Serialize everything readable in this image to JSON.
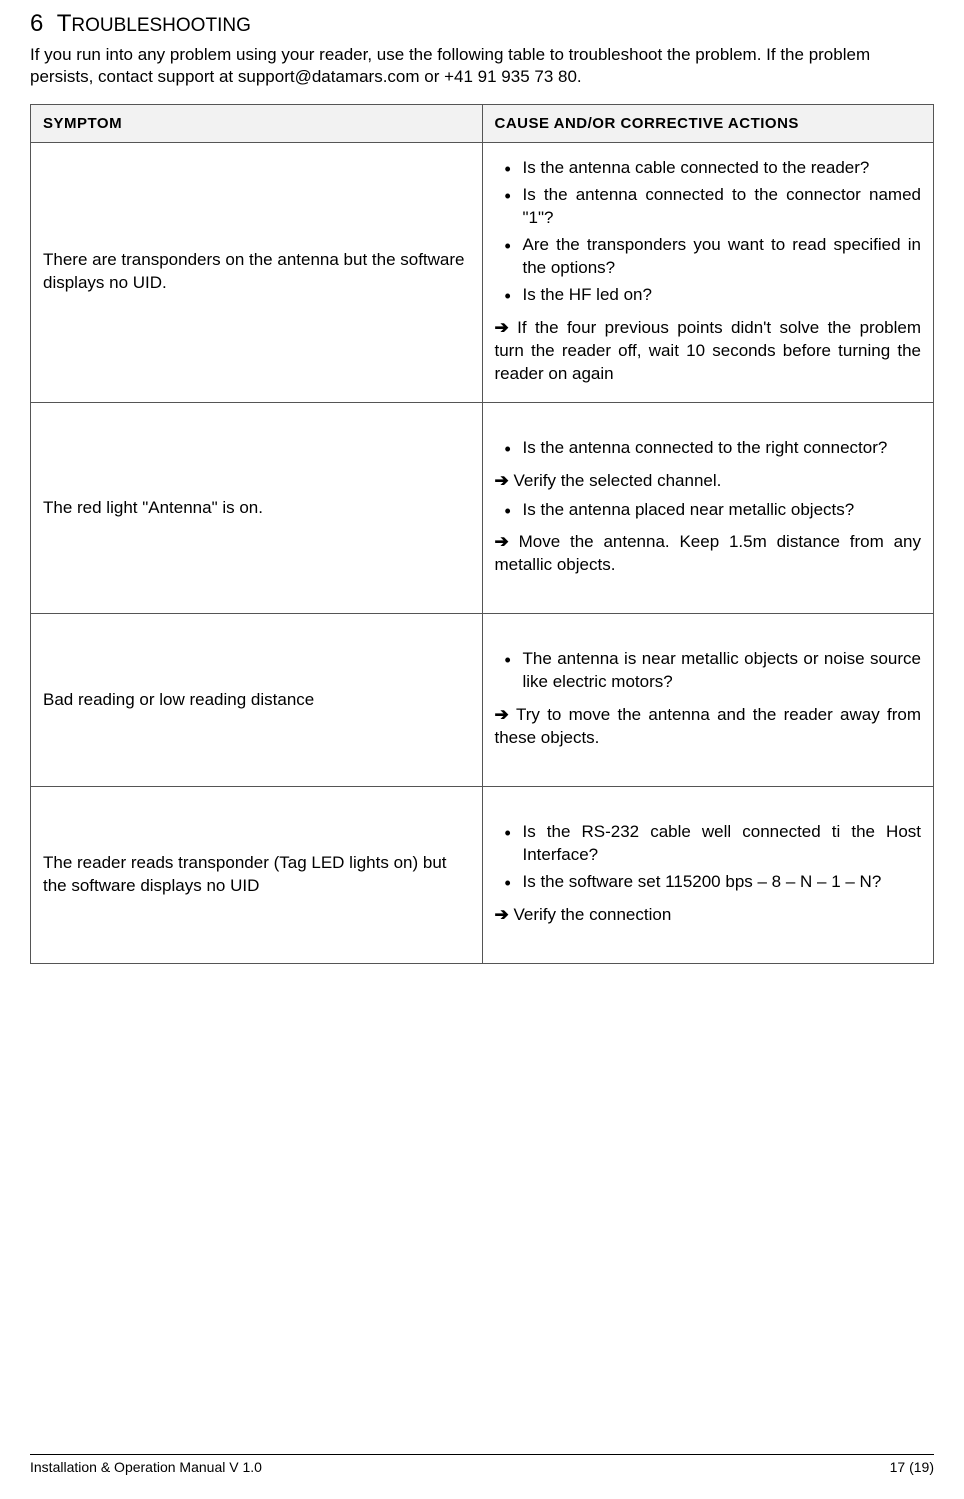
{
  "section": {
    "number": "6",
    "title_first_letter": "T",
    "title_rest": "ROUBLESHOOTING"
  },
  "intro": "If you run into any problem using your reader, use the following table to troubleshoot the problem. If the problem persists, contact support at support@datamars.com or +41 91 935 73 80.",
  "table": {
    "header_symptom": "SYMPTOM",
    "header_action": "CAUSE AND/OR CORRECTIVE ACTIONS",
    "rows": [
      {
        "symptom": "There are transponders on the antenna but the software displays no UID.",
        "bullets": [
          "Is the antenna cable connected to the reader?",
          "Is the antenna connected to the connector named \"1\"?",
          "Are the transponders you want to read specified in the options?",
          "Is the HF led on?"
        ],
        "arrows": [
          "If the four previous points didn't solve the problem turn the reader off, wait 10 seconds before turning the reader on again"
        ]
      },
      {
        "symptom": "The red light \"Antenna\" is on.",
        "blocks": [
          {
            "type": "bullets",
            "items": [
              "Is the antenna connected to the right connector?"
            ]
          },
          {
            "type": "arrow",
            "text": "Verify the selected channel."
          },
          {
            "type": "bullets",
            "items": [
              "Is the antenna placed near metallic objects?"
            ]
          },
          {
            "type": "arrow",
            "text": "Move the antenna. Keep 1.5m distance from any metallic objects."
          }
        ]
      },
      {
        "symptom": "Bad reading or low reading distance",
        "blocks": [
          {
            "type": "bullets",
            "items": [
              "The antenna is near metallic objects or noise source like electric motors?"
            ]
          },
          {
            "type": "arrow",
            "text": "Try to move the antenna and the reader away from these objects."
          }
        ]
      },
      {
        "symptom": "The reader reads transponder (Tag LED lights on) but the software displays no UID",
        "blocks": [
          {
            "type": "bullets",
            "items": [
              "Is the RS-232 cable well connected ti the Host Interface?",
              "Is the software set 115200 bps – 8 – N – 1 – N?"
            ]
          },
          {
            "type": "arrow",
            "text": "Verify the connection"
          }
        ]
      }
    ]
  },
  "footer": {
    "left": "Installation & Operation Manual V 1.0",
    "right": "17 (19)"
  }
}
